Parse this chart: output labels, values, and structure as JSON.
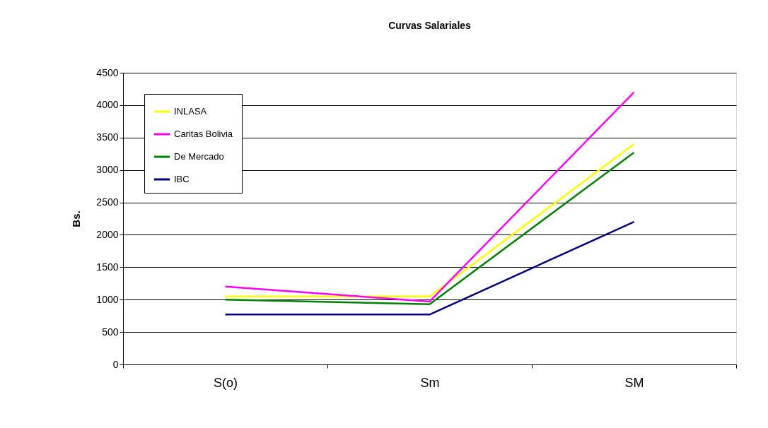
{
  "chart_data": {
    "type": "line",
    "title": "Curvas Salariales",
    "ylabel": "Bs.",
    "categories": [
      "S(o)",
      "Sm",
      "SM"
    ],
    "series": [
      {
        "name": "INLASA",
        "color": "#ffff00",
        "values": [
          1050,
          1050,
          3400
        ]
      },
      {
        "name": "Caritas Bolivia",
        "color": "#ff00ff",
        "values": [
          1200,
          970,
          4200
        ]
      },
      {
        "name": "De Mercado",
        "color": "#008000",
        "values": [
          1000,
          930,
          3270
        ]
      },
      {
        "name": "IBC",
        "color": "#000080",
        "values": [
          770,
          770,
          2200
        ]
      }
    ],
    "ylim": [
      0,
      4500
    ],
    "yticks": [
      0,
      500,
      1000,
      1500,
      2000,
      2500,
      3000,
      3500,
      4000,
      4500
    ],
    "grid": "y",
    "legend": "top left",
    "marker": "none",
    "line_style": "solid"
  }
}
